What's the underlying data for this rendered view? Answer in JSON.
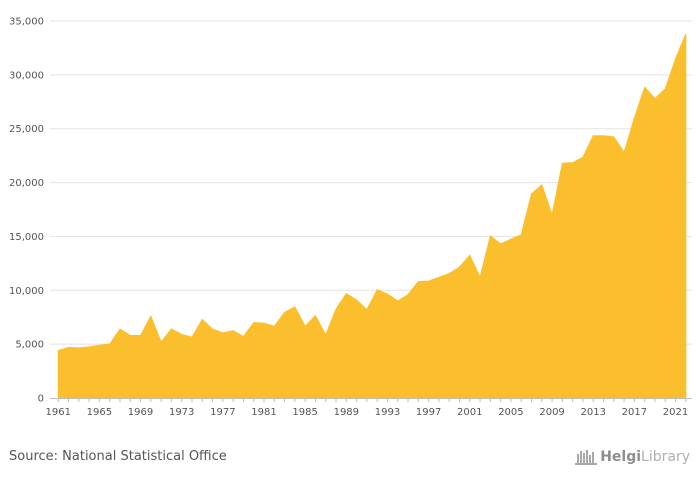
{
  "footer": {
    "source": "Source: National Statistical Office",
    "logo_bold": "Helgi",
    "logo_light": "Library"
  },
  "colors": {
    "area": "#FBBF2D"
  },
  "chart_data": {
    "type": "area",
    "title": "",
    "xlabel": "",
    "ylabel": "",
    "ylim": [
      0,
      35000
    ],
    "yticks": [
      0,
      5000,
      10000,
      15000,
      20000,
      25000,
      30000,
      35000
    ],
    "ytick_labels": [
      "0",
      "5,000",
      "10,000",
      "15,000",
      "20,000",
      "25,000",
      "30,000",
      "35,000"
    ],
    "xtick_labels": [
      "1961",
      "1965",
      "1969",
      "1973",
      "1977",
      "1981",
      "1985",
      "1989",
      "1993",
      "1997",
      "2001",
      "2005",
      "2009",
      "2013",
      "2017",
      "2021"
    ],
    "grid": true,
    "legend": "none",
    "x": [
      1961,
      1962,
      1963,
      1964,
      1965,
      1966,
      1967,
      1968,
      1969,
      1970,
      1971,
      1972,
      1973,
      1974,
      1975,
      1976,
      1977,
      1978,
      1979,
      1980,
      1981,
      1982,
      1983,
      1984,
      1985,
      1986,
      1987,
      1988,
      1989,
      1990,
      1991,
      1992,
      1993,
      1994,
      1995,
      1996,
      1997,
      1998,
      1999,
      2000,
      2001,
      2002,
      2003,
      2004,
      2005,
      2006,
      2007,
      2008,
      2009,
      2010,
      2011,
      2012,
      2013,
      2014,
      2015,
      2016,
      2017,
      2018,
      2019,
      2020,
      2021,
      2022
    ],
    "series": [
      {
        "values": [
          4400,
          4700,
          4650,
          4750,
          4900,
          5000,
          6400,
          5800,
          5800,
          7600,
          5200,
          6400,
          5900,
          5650,
          7300,
          6400,
          6050,
          6250,
          5700,
          7000,
          6950,
          6650,
          7950,
          8450,
          6650,
          7650,
          5850,
          8250,
          9700,
          9100,
          8200,
          10050,
          9650,
          9000,
          9600,
          10800,
          10850,
          11200,
          11550,
          12150,
          13250,
          11200,
          15050,
          14300,
          14750,
          15150,
          18950,
          19800,
          17000,
          21800,
          21850,
          22350,
          24350,
          24350,
          24250,
          22800,
          26000,
          28850,
          27800,
          28700,
          31500,
          33800
        ]
      }
    ]
  }
}
